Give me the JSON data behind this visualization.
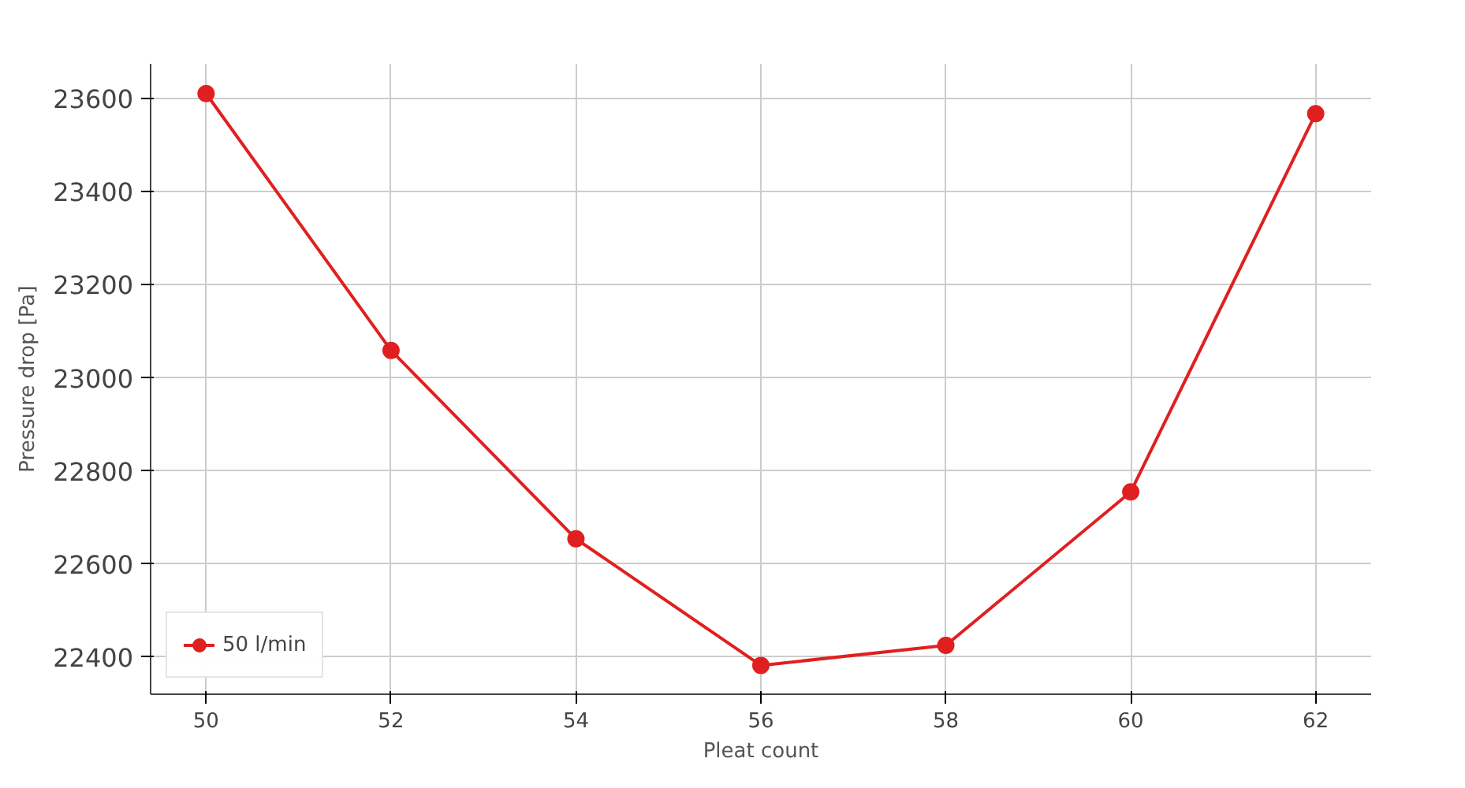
{
  "chart_data": {
    "type": "line",
    "xlabel": "Pleat count",
    "ylabel": "Pressure drop [Pa]",
    "x": [
      50,
      52,
      54,
      56,
      58,
      60,
      62
    ],
    "series": [
      {
        "name": "50 l/min",
        "color": "#e02020",
        "values": [
          23611,
          23059,
          22654,
          22382,
          22425,
          22755,
          23568
        ]
      }
    ],
    "xlim": [
      49.4,
      62.6
    ],
    "xticks": [
      50,
      52,
      54,
      56,
      58,
      60,
      62
    ],
    "ylim": [
      22320,
      23675
    ],
    "yticks": [
      22400,
      22600,
      22800,
      23000,
      23200,
      23400,
      23600
    ],
    "grid": true,
    "legend": "bottom left",
    "marker": "circle",
    "line_style": "solid"
  }
}
